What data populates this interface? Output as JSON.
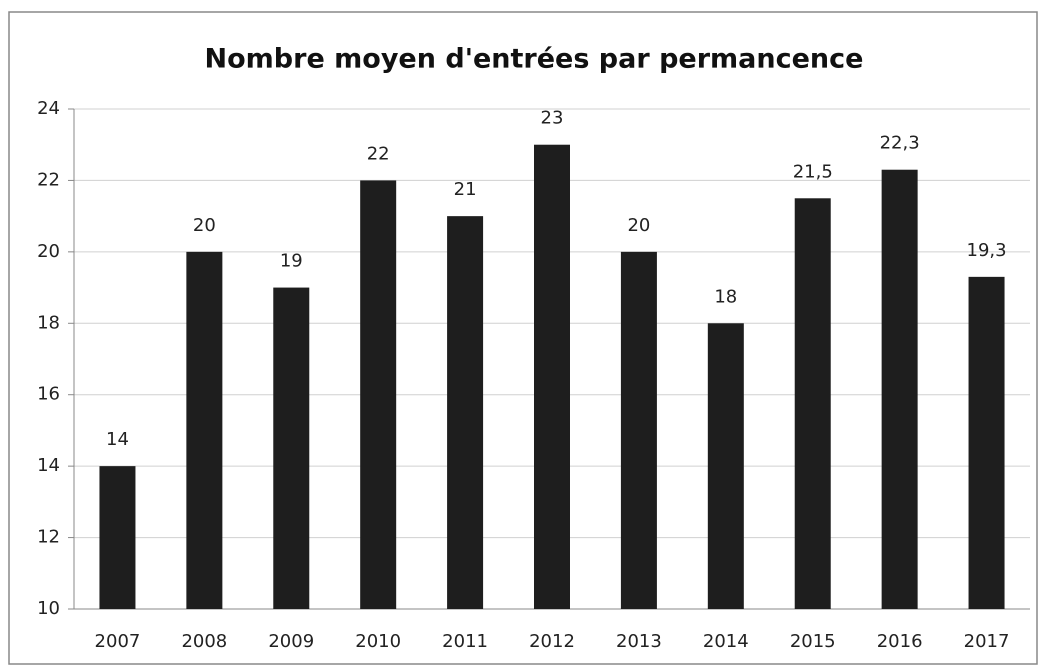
{
  "chart_data": {
    "type": "bar",
    "title": "Nombre moyen d'entrées par permancence",
    "categories": [
      "2007",
      "2008",
      "2009",
      "2010",
      "2011",
      "2012",
      "2013",
      "2014",
      "2015",
      "2016",
      "2017"
    ],
    "values": [
      14,
      20,
      19,
      22,
      21,
      23,
      20,
      18,
      21.5,
      22.3,
      19.3
    ],
    "value_labels": [
      "14",
      "20",
      "19",
      "22",
      "21",
      "23",
      "20",
      "18",
      "21,5",
      "22,3",
      "19,3"
    ],
    "color": "#1e1e1e",
    "ylim": [
      10,
      24
    ],
    "yticks": [
      10,
      12,
      14,
      16,
      18,
      20,
      22,
      24
    ],
    "grid": true
  }
}
